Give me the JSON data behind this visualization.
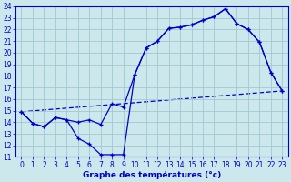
{
  "title": "Graphe des températures (°c)",
  "bg_color": "#cde8ec",
  "grid_color": "#a0c8d0",
  "line_color": "#0000cc",
  "xlim": [
    -0.5,
    23.5
  ],
  "ylim": [
    11,
    24
  ],
  "xticks": [
    0,
    1,
    2,
    3,
    4,
    5,
    6,
    7,
    8,
    9,
    10,
    11,
    12,
    13,
    14,
    15,
    16,
    17,
    18,
    19,
    20,
    21,
    22,
    23
  ],
  "yticks": [
    11,
    12,
    13,
    14,
    15,
    16,
    17,
    18,
    19,
    20,
    21,
    22,
    23,
    24
  ],
  "line1_x": [
    0,
    1,
    2,
    3,
    4,
    5,
    6,
    7,
    8,
    9,
    10,
    11,
    12,
    13,
    14,
    15,
    16,
    17,
    18,
    19,
    20,
    21,
    22,
    23
  ],
  "line1_y": [
    14.9,
    13.9,
    13.6,
    14.4,
    14.2,
    12.6,
    12.1,
    11.2,
    11.2,
    11.2,
    18.1,
    20.4,
    21.0,
    22.1,
    22.2,
    22.4,
    22.8,
    23.1,
    23.8,
    22.5,
    22.0,
    20.9,
    18.3,
    16.7
  ],
  "line2_x": [
    0,
    1,
    2,
    3,
    4,
    5,
    6,
    7,
    8,
    9,
    10,
    11,
    12,
    13,
    14,
    15,
    16,
    17,
    18,
    19,
    20,
    21,
    22,
    23
  ],
  "line2_y": [
    14.9,
    13.9,
    13.6,
    14.4,
    14.2,
    14.0,
    14.2,
    13.8,
    15.6,
    15.3,
    18.1,
    20.4,
    21.0,
    22.1,
    22.2,
    22.4,
    22.8,
    23.1,
    23.8,
    22.5,
    22.0,
    20.9,
    18.3,
    16.7
  ],
  "line3_x": [
    0,
    23
  ],
  "line3_y": [
    14.9,
    16.7
  ],
  "tick_fontsize": 5.5,
  "label_fontsize": 6.5
}
